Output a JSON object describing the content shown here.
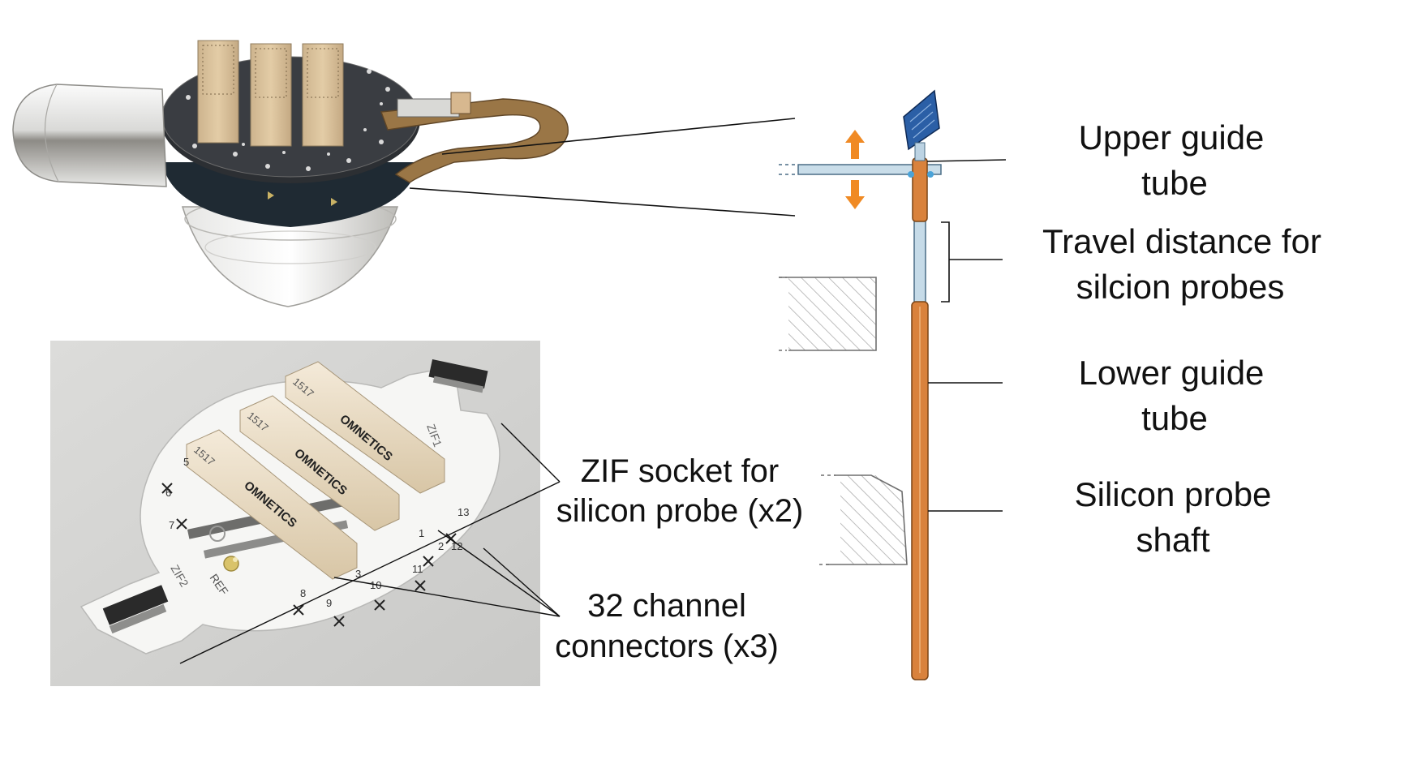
{
  "labels": {
    "zif_line1": "ZIF socket for",
    "zif_line2": "silicon probe (x2)",
    "conn_line1": "32 channel",
    "conn_line2": "connectors (x3)",
    "upper_line1": "Upper guide",
    "upper_line2": "tube",
    "travel_line1": "Travel distance for",
    "travel_line2": "silcion probes",
    "lower_line1": "Lower guide",
    "lower_line2": "tube",
    "shaft_line1": "Silicon probe",
    "shaft_line2": "shaft"
  },
  "board_print": {
    "brand": "OMNETICS",
    "part": "1517",
    "zif1": "ZIF1",
    "zif2": "ZIF2",
    "ref": "REF",
    "pin_numbers": [
      "5",
      "6",
      "7",
      "8",
      "9",
      "10",
      "11",
      "12",
      "13",
      "1",
      "2",
      "3"
    ]
  },
  "colors": {
    "guide_tube": "#d9823c",
    "probe_chip": "#2b5fa6",
    "arrow": "#f08a24",
    "hatch": "#9a9a9a",
    "connector": "#e9dcc0",
    "photo_bg": "#d6d6d4",
    "pcb_white": "#f7f7f5",
    "flex_cable": "#8a6a3a"
  }
}
